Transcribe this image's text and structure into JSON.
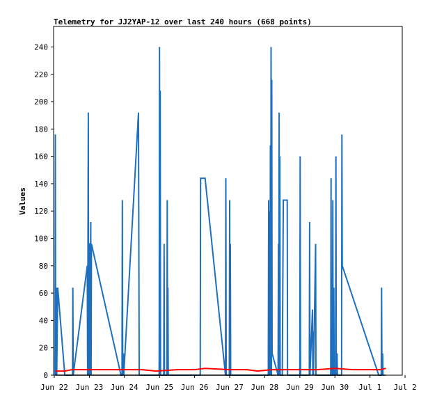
{
  "chart_data": {
    "type": "line",
    "title": "Telemetry for JJ2YAP-12 over last 240 hours (668 points)",
    "xlabel": "",
    "ylabel": "Values",
    "ylim": [
      0,
      255
    ],
    "yticks": [
      0,
      20,
      40,
      60,
      80,
      100,
      120,
      140,
      160,
      180,
      200,
      220,
      240
    ],
    "xlim": [
      0,
      9.9
    ],
    "xticks": [
      {
        "label": "Jun 22",
        "value": 0
      },
      {
        "label": "Jun 23",
        "value": 1
      },
      {
        "label": "Jun 24",
        "value": 2
      },
      {
        "label": "Jun 25",
        "value": 3
      },
      {
        "label": "Jun 26",
        "value": 4
      },
      {
        "label": "Jun 27",
        "value": 5
      },
      {
        "label": "Jun 28",
        "value": 6
      },
      {
        "label": "Jun 29",
        "value": 7
      },
      {
        "label": "Jun 30",
        "value": 8
      },
      {
        "label": "Jul 1",
        "value": 9
      },
      {
        "label": "Jul 2",
        "value": 10
      }
    ],
    "grid": false,
    "series": [
      {
        "color": "#1f6fbf",
        "points": [
          [
            0.02,
            0
          ],
          [
            0.03,
            176
          ],
          [
            0.04,
            0
          ],
          [
            0.06,
            64
          ],
          [
            0.07,
            0
          ],
          [
            0.1,
            64
          ],
          [
            0.3,
            0
          ],
          [
            0.52,
            0
          ],
          [
            0.53,
            64
          ],
          [
            0.54,
            0
          ],
          [
            0.94,
            80
          ],
          [
            0.95,
            0
          ],
          [
            0.96,
            96
          ],
          [
            0.97,
            192
          ],
          [
            0.98,
            0
          ],
          [
            0.99,
            96
          ],
          [
            1.0,
            96
          ],
          [
            1.01,
            0
          ],
          [
            1.04,
            112
          ],
          [
            1.05,
            0
          ],
          [
            1.06,
            96
          ],
          [
            1.9,
            0
          ],
          [
            1.93,
            0
          ],
          [
            1.94,
            128
          ],
          [
            1.95,
            0
          ],
          [
            1.97,
            16
          ],
          [
            1.98,
            0
          ],
          [
            2.4,
            192
          ],
          [
            2.41,
            96
          ],
          [
            2.42,
            0
          ],
          [
            2.99,
            0
          ],
          [
            3.0,
            240
          ],
          [
            3.01,
            0
          ],
          [
            3.02,
            208
          ],
          [
            3.03,
            0
          ],
          [
            3.12,
            0
          ],
          [
            3.13,
            96
          ],
          [
            3.14,
            0
          ],
          [
            3.21,
            0
          ],
          [
            3.22,
            128
          ],
          [
            3.23,
            0
          ],
          [
            3.24,
            64
          ],
          [
            3.25,
            0
          ],
          [
            4.16,
            0
          ],
          [
            4.17,
            144
          ],
          [
            4.3,
            144
          ],
          [
            4.88,
            0
          ],
          [
            4.89,
            144
          ],
          [
            4.9,
            0
          ],
          [
            4.99,
            0
          ],
          [
            5.0,
            128
          ],
          [
            5.01,
            0
          ],
          [
            5.02,
            96
          ],
          [
            5.03,
            0
          ],
          [
            6.1,
            0
          ],
          [
            6.11,
            128
          ],
          [
            6.12,
            0
          ],
          [
            6.14,
            120
          ],
          [
            6.15,
            0
          ],
          [
            6.16,
            168
          ],
          [
            6.17,
            0
          ],
          [
            6.18,
            240
          ],
          [
            6.19,
            0
          ],
          [
            6.2,
            216
          ],
          [
            6.21,
            16
          ],
          [
            6.38,
            0
          ],
          [
            6.39,
            96
          ],
          [
            6.4,
            0
          ],
          [
            6.41,
            192
          ],
          [
            6.42,
            0
          ],
          [
            6.43,
            160
          ],
          [
            6.44,
            0
          ],
          [
            6.5,
            0
          ],
          [
            6.53,
            128
          ],
          [
            6.64,
            128
          ],
          [
            6.65,
            0
          ],
          [
            7.0,
            0
          ],
          [
            7.01,
            160
          ],
          [
            7.02,
            0
          ],
          [
            7.27,
            0
          ],
          [
            7.28,
            112
          ],
          [
            7.29,
            0
          ],
          [
            7.36,
            48
          ],
          [
            7.37,
            0
          ],
          [
            7.38,
            32
          ],
          [
            7.39,
            0
          ],
          [
            7.45,
            96
          ],
          [
            7.46,
            0
          ],
          [
            7.88,
            0
          ],
          [
            7.89,
            144
          ],
          [
            7.9,
            0
          ],
          [
            7.93,
            0
          ],
          [
            7.94,
            128
          ],
          [
            7.95,
            0
          ],
          [
            7.97,
            64
          ],
          [
            7.98,
            0
          ],
          [
            8.02,
            0
          ],
          [
            8.03,
            160
          ],
          [
            8.04,
            0
          ],
          [
            8.06,
            16
          ],
          [
            8.07,
            0
          ],
          [
            8.19,
            0
          ],
          [
            8.2,
            176
          ],
          [
            8.21,
            80
          ],
          [
            9.25,
            0
          ],
          [
            9.32,
            0
          ],
          [
            9.33,
            64
          ],
          [
            9.34,
            0
          ],
          [
            9.36,
            16
          ],
          [
            9.37,
            0
          ]
        ]
      },
      {
        "color": "#ff0000",
        "points": [
          [
            0.02,
            3
          ],
          [
            0.3,
            3
          ],
          [
            0.5,
            4
          ],
          [
            1.0,
            4
          ],
          [
            2.5,
            4
          ],
          [
            2.9,
            3
          ],
          [
            3.5,
            4
          ],
          [
            4.0,
            4
          ],
          [
            4.3,
            5
          ],
          [
            5.0,
            4
          ],
          [
            5.5,
            4
          ],
          [
            5.8,
            3
          ],
          [
            6.2,
            4
          ],
          [
            6.6,
            4
          ],
          [
            7.0,
            4
          ],
          [
            7.5,
            4
          ],
          [
            8.0,
            5
          ],
          [
            8.5,
            4
          ],
          [
            9.0,
            4
          ],
          [
            9.3,
            4
          ],
          [
            9.45,
            5
          ]
        ]
      },
      {
        "color": "#000000",
        "points": [
          [
            0.02,
            0
          ],
          [
            9.45,
            0
          ]
        ]
      }
    ]
  }
}
